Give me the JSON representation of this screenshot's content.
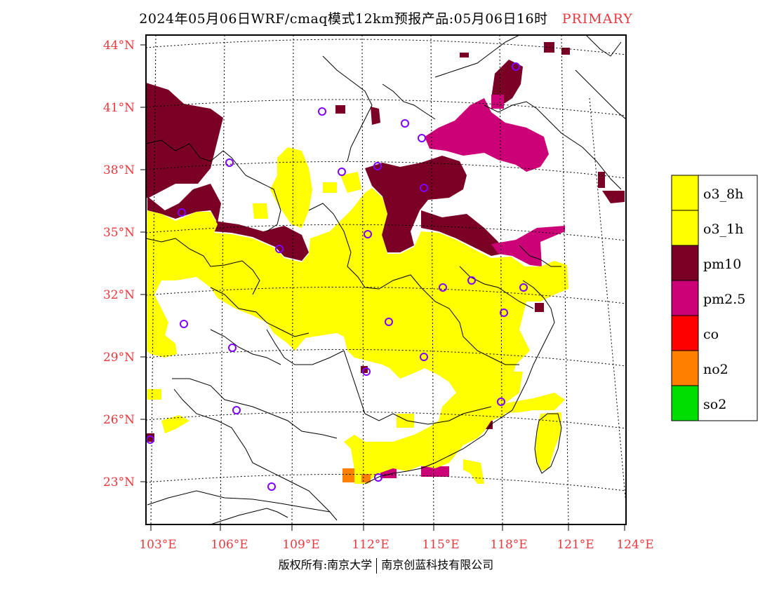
{
  "title": "2024年05月06日WRF/cmaq模式12km预报产品:05月06日16时",
  "title_tag": "PRIMARY",
  "lat_labels": [
    "44°N",
    "41°N",
    "38°N",
    "35°N",
    "32°N",
    "29°N",
    "26°N",
    "23°N"
  ],
  "lon_labels": [
    "103°E",
    "106°E",
    "109°E",
    "112°E",
    "115°E",
    "118°E",
    "121°E",
    "124°E"
  ],
  "legend": [
    {
      "label": "o3_8h",
      "color": "#ffff00"
    },
    {
      "label": "o3_1h",
      "color": "#ffff00"
    },
    {
      "label": "pm10",
      "color": "#7a0026"
    },
    {
      "label": "pm2.5",
      "color": "#cc0077"
    },
    {
      "label": "co",
      "color": "#ff0000"
    },
    {
      "label": "no2",
      "color": "#ff7f00"
    },
    {
      "label": "so2",
      "color": "#00dd00"
    }
  ],
  "footer_left": "版权所有:南京大学",
  "footer_right": "南京创蓝科技有限公司"
}
